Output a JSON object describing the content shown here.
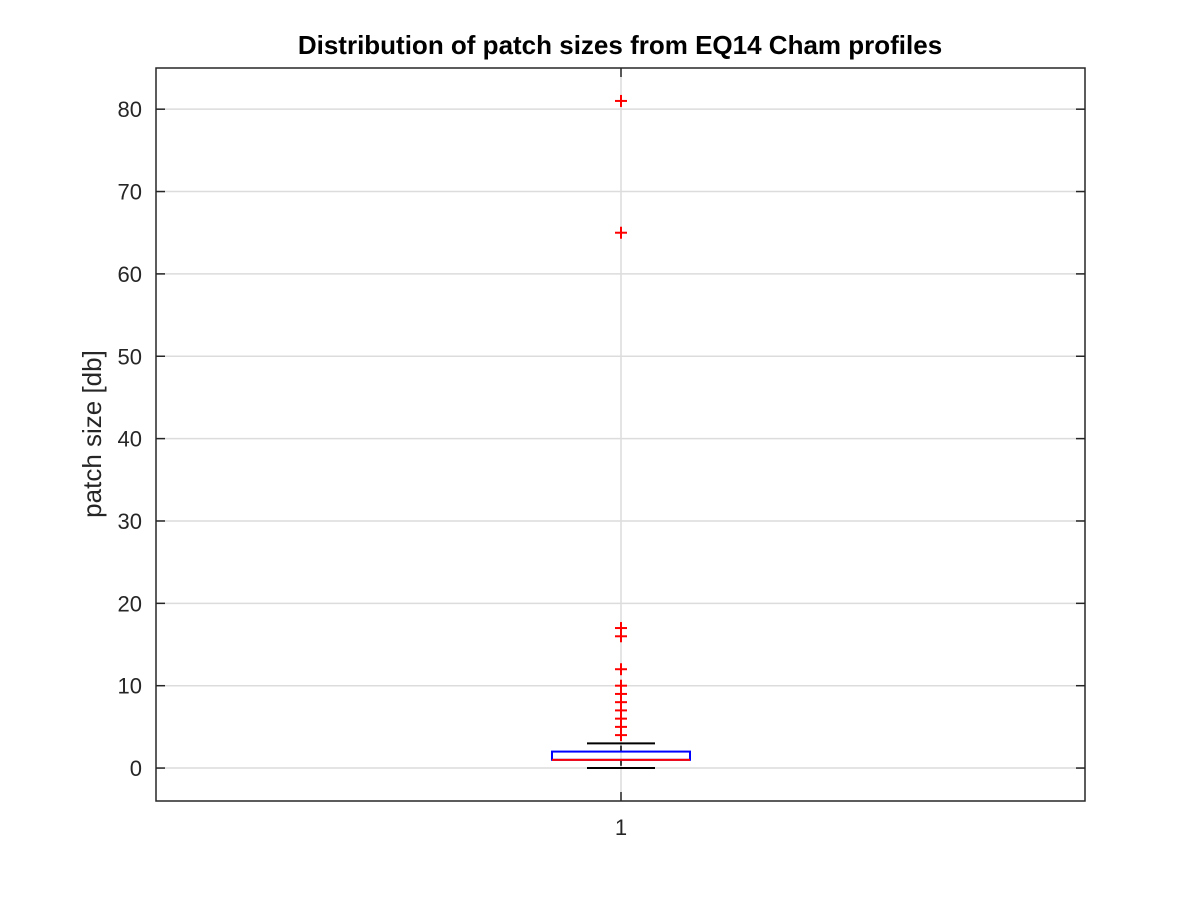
{
  "chart_data": {
    "type": "boxplot",
    "title": "Distribution of patch sizes from EQ14 Cham profiles",
    "xlabel": "",
    "ylabel": "patch size [db]",
    "categories": [
      "1"
    ],
    "ylim": [
      -4,
      85
    ],
    "yticks": [
      0,
      10,
      20,
      30,
      40,
      50,
      60,
      70,
      80
    ],
    "grid": true,
    "box": {
      "q1": 1,
      "median": 1,
      "q3": 2,
      "whisker_low": 0,
      "whisker_high": 3
    },
    "outliers": [
      4,
      5,
      6,
      7,
      8,
      9,
      10,
      12,
      16,
      17,
      65,
      81
    ],
    "colors": {
      "box": "#0000ff",
      "median": "#ff0000",
      "whisker": "#000000",
      "outlier": "#ff0000",
      "grid": "#dcdcdc",
      "axes": "#262626"
    }
  }
}
